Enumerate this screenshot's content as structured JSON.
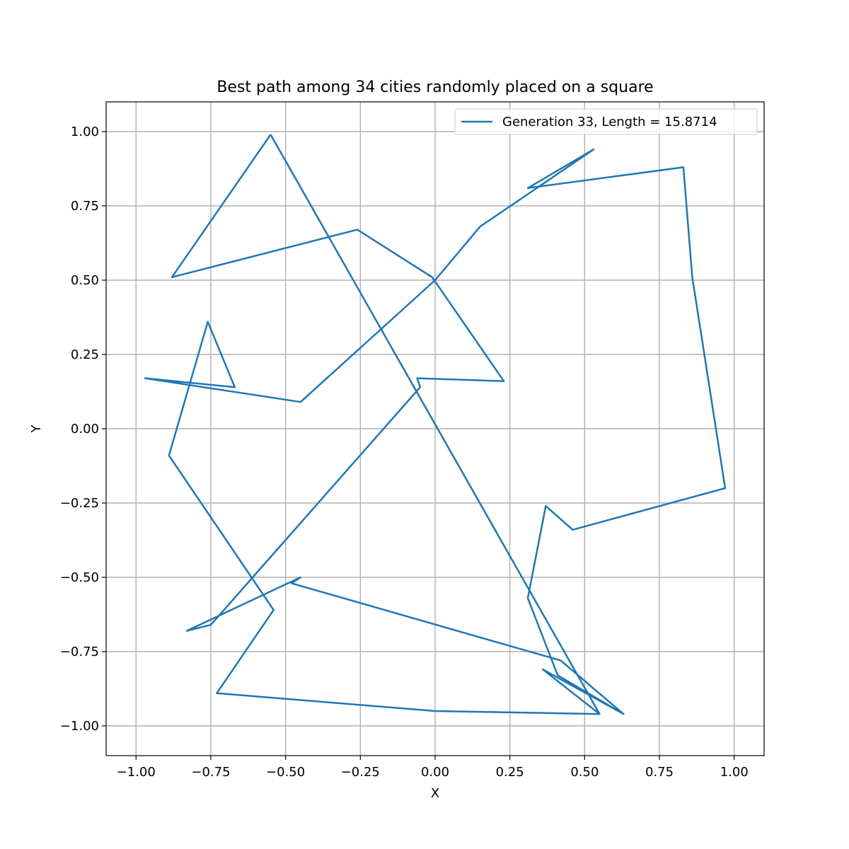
{
  "chart_data": {
    "type": "line",
    "title": "Best path among 34 cities randomly placed on a square",
    "xlabel": "X",
    "ylabel": "Y",
    "xlim": [
      -1.1,
      1.1
    ],
    "ylim": [
      -1.1,
      1.1
    ],
    "grid": true,
    "legend_position": "top-right",
    "x_ticks": [
      -1.0,
      -0.75,
      -0.5,
      -0.25,
      0.0,
      0.25,
      0.5,
      0.75,
      1.0
    ],
    "x_tick_labels": [
      "−1.00",
      "−0.75",
      "−0.50",
      "−0.25",
      "0.00",
      "0.25",
      "0.50",
      "0.75",
      "1.00"
    ],
    "y_ticks": [
      -1.0,
      -0.75,
      -0.5,
      -0.25,
      0.0,
      0.25,
      0.5,
      0.75,
      1.0
    ],
    "y_tick_labels": [
      "−1.00",
      "−0.75",
      "−0.50",
      "−0.25",
      "0.00",
      "0.25",
      "0.50",
      "0.75",
      "1.00"
    ],
    "series": [
      {
        "name": "Generation 33, Length = 15.8714",
        "color": "#1f77b4",
        "x": [
          -0.55,
          0.55,
          0.36,
          0.63,
          0.41,
          0.31,
          0.37,
          0.46,
          0.97,
          0.86,
          0.83,
          0.31,
          0.53,
          0.15,
          0.0,
          -0.45,
          -0.97,
          -0.67,
          -0.76,
          -0.89,
          -0.54,
          -0.73,
          0.0,
          0.55,
          0.36,
          0.63,
          0.42,
          -0.48,
          -0.45,
          -0.83,
          -0.75,
          -0.05,
          -0.06,
          0.23,
          -0.01,
          -0.26,
          -0.88,
          -0.55
        ],
        "y": [
          0.99,
          -0.96,
          -0.81,
          -0.96,
          -0.83,
          -0.57,
          -0.26,
          -0.34,
          -0.2,
          0.51,
          0.88,
          0.81,
          0.94,
          0.68,
          0.5,
          0.09,
          0.17,
          0.14,
          0.36,
          -0.09,
          -0.61,
          -0.89,
          -0.95,
          -0.96,
          -0.81,
          -0.96,
          -0.78,
          -0.52,
          -0.5,
          -0.68,
          -0.66,
          0.14,
          0.17,
          0.16,
          0.51,
          0.67,
          0.51,
          0.99
        ]
      }
    ]
  }
}
